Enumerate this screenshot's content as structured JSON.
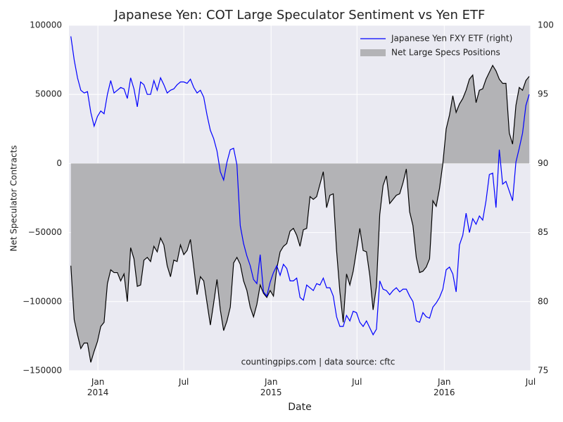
{
  "chart_data": {
    "type": "line",
    "title": "Japanese Yen: COT Large Speculator Sentiment vs Yen ETF",
    "xlabel": "Date",
    "ylabel": "Net Speculator Contracts",
    "annotation": "countingpips.com | data source: cftc",
    "grid": true,
    "legend": "upper right",
    "xlim": [
      "2013-11-01",
      "2016-07-01"
    ],
    "xticks": [
      {
        "value": "2014-01-01",
        "label": "Jan 2014"
      },
      {
        "value": "2014-07-01",
        "label": "Jul"
      },
      {
        "value": "2015-01-01",
        "label": "Jan 2015"
      },
      {
        "value": "2015-07-01",
        "label": "Jul"
      },
      {
        "value": "2016-01-01",
        "label": "Jan 2016"
      },
      {
        "value": "2016-07-01",
        "label": "Jul"
      }
    ],
    "ylim": [
      -150000,
      100000
    ],
    "yticks": [
      {
        "value": -150000,
        "label": "−150000"
      },
      {
        "value": -100000,
        "label": "−100000"
      },
      {
        "value": -50000,
        "label": "−50000"
      },
      0,
      50000,
      100000
    ],
    "y2lim": [
      75,
      100
    ],
    "y2ticks": [
      75,
      80,
      85,
      90,
      95,
      100
    ],
    "x": [
      "2013-11-05",
      "2013-11-12",
      "2013-11-19",
      "2013-11-26",
      "2013-12-03",
      "2013-12-10",
      "2013-12-17",
      "2013-12-24",
      "2013-12-31",
      "2014-01-07",
      "2014-01-14",
      "2014-01-21",
      "2014-01-28",
      "2014-02-04",
      "2014-02-11",
      "2014-02-18",
      "2014-02-25",
      "2014-03-04",
      "2014-03-11",
      "2014-03-18",
      "2014-03-25",
      "2014-04-01",
      "2014-04-08",
      "2014-04-15",
      "2014-04-22",
      "2014-04-29",
      "2014-05-06",
      "2014-05-13",
      "2014-05-20",
      "2014-05-27",
      "2014-06-03",
      "2014-06-10",
      "2014-06-17",
      "2014-06-24",
      "2014-07-01",
      "2014-07-08",
      "2014-07-15",
      "2014-07-22",
      "2014-07-29",
      "2014-08-05",
      "2014-08-12",
      "2014-08-19",
      "2014-08-26",
      "2014-09-02",
      "2014-09-09",
      "2014-09-16",
      "2014-09-23",
      "2014-09-30",
      "2014-10-07",
      "2014-10-14",
      "2014-10-21",
      "2014-10-28",
      "2014-11-04",
      "2014-11-11",
      "2014-11-18",
      "2014-11-25",
      "2014-12-02",
      "2014-12-09",
      "2014-12-16",
      "2014-12-23",
      "2014-12-30",
      "2015-01-06",
      "2015-01-13",
      "2015-01-20",
      "2015-01-27",
      "2015-02-03",
      "2015-02-10",
      "2015-02-17",
      "2015-02-24",
      "2015-03-03",
      "2015-03-10",
      "2015-03-17",
      "2015-03-24",
      "2015-03-31",
      "2015-04-07",
      "2015-04-14",
      "2015-04-21",
      "2015-04-28",
      "2015-05-05",
      "2015-05-12",
      "2015-05-19",
      "2015-05-26",
      "2015-06-02",
      "2015-06-09",
      "2015-06-16",
      "2015-06-23",
      "2015-06-30",
      "2015-07-07",
      "2015-07-14",
      "2015-07-21",
      "2015-07-28",
      "2015-08-04",
      "2015-08-11",
      "2015-08-18",
      "2015-08-25",
      "2015-09-01",
      "2015-09-08",
      "2015-09-15",
      "2015-09-22",
      "2015-09-29",
      "2015-10-06",
      "2015-10-13",
      "2015-10-20",
      "2015-10-27",
      "2015-11-03",
      "2015-11-10",
      "2015-11-17",
      "2015-11-24",
      "2015-12-01",
      "2015-12-08",
      "2015-12-15",
      "2015-12-22",
      "2015-12-29",
      "2016-01-05",
      "2016-01-12",
      "2016-01-19",
      "2016-01-26",
      "2016-02-02",
      "2016-02-09",
      "2016-02-16",
      "2016-02-23",
      "2016-03-01",
      "2016-03-08",
      "2016-03-15",
      "2016-03-22",
      "2016-03-29",
      "2016-04-05",
      "2016-04-12",
      "2016-04-19",
      "2016-04-26",
      "2016-05-03",
      "2016-05-10",
      "2016-05-17",
      "2016-05-24",
      "2016-05-31",
      "2016-06-07",
      "2016-06-14",
      "2016-06-21",
      "2016-06-28"
    ],
    "series": [
      {
        "name": "Japanese Yen FXY ETF (right)",
        "type": "line",
        "axis": "y2",
        "color": "#0000ff",
        "values": [
          99.2,
          97.5,
          96.2,
          95.3,
          95.1,
          95.2,
          93.7,
          92.7,
          93.4,
          93.8,
          93.6,
          95.0,
          96.0,
          95.1,
          95.3,
          95.5,
          95.4,
          94.7,
          96.2,
          95.4,
          94.1,
          95.9,
          95.7,
          95.0,
          95.0,
          96.0,
          95.3,
          96.2,
          95.7,
          95.1,
          95.3,
          95.4,
          95.7,
          95.9,
          95.9,
          95.8,
          96.1,
          95.5,
          95.1,
          95.3,
          94.8,
          93.5,
          92.4,
          91.8,
          90.9,
          89.4,
          88.8,
          90.1,
          91.0,
          91.1,
          89.9,
          85.5,
          84.2,
          83.3,
          82.6,
          81.6,
          81.3,
          83.4,
          80.7,
          80.4,
          81.4,
          82.1,
          82.6,
          81.9,
          82.7,
          82.4,
          81.5,
          81.5,
          81.7,
          80.3,
          80.1,
          81.2,
          81.0,
          80.8,
          81.3,
          81.2,
          81.7,
          81.0,
          81.0,
          80.4,
          78.9,
          78.2,
          78.2,
          79.0,
          78.6,
          79.3,
          79.2,
          78.5,
          78.2,
          78.6,
          78.1,
          77.6,
          78.0,
          81.5,
          80.9,
          80.8,
          80.5,
          80.8,
          81.0,
          80.7,
          80.9,
          80.9,
          80.4,
          80.0,
          78.6,
          78.5,
          79.2,
          78.9,
          78.8,
          79.6,
          79.9,
          80.3,
          80.9,
          82.3,
          82.5,
          82.0,
          80.7,
          84.1,
          84.8,
          86.4,
          85.0,
          86.0,
          85.6,
          86.2,
          85.9,
          87.3,
          89.2,
          89.3,
          86.8,
          91.0,
          88.5,
          88.7,
          88.0,
          87.3,
          90.1,
          91.1,
          92.2,
          94.2,
          95.0
        ]
      },
      {
        "name": "Net Large Specs Positions",
        "type": "area",
        "axis": "y",
        "color": "#b3b3b6",
        "line_color": "#000000",
        "values": [
          -74000,
          -113000,
          -124000,
          -134000,
          -130000,
          -130000,
          -144000,
          -136000,
          -129000,
          -118000,
          -115000,
          -87000,
          -77000,
          -79000,
          -79000,
          -85000,
          -80000,
          -100000,
          -61000,
          -69000,
          -89000,
          -88000,
          -70000,
          -68000,
          -71000,
          -60000,
          -64000,
          -54000,
          -59000,
          -74000,
          -82000,
          -70000,
          -71000,
          -59000,
          -66000,
          -63000,
          -55000,
          -75000,
          -95000,
          -82000,
          -85000,
          -101000,
          -117000,
          -101000,
          -84000,
          -106000,
          -121000,
          -114000,
          -104000,
          -72000,
          -68000,
          -73000,
          -85000,
          -92000,
          -104000,
          -111000,
          -102000,
          -88000,
          -94000,
          -97000,
          -92000,
          -96000,
          -76000,
          -64000,
          -60000,
          -58000,
          -49000,
          -47000,
          -52000,
          -60000,
          -48000,
          -47000,
          -24000,
          -26000,
          -24000,
          -15000,
          -6000,
          -32000,
          -23000,
          -22000,
          -63000,
          -93000,
          -115000,
          -80000,
          -88000,
          -78000,
          -63000,
          -47000,
          -63000,
          -64000,
          -81000,
          -106000,
          -89000,
          -37000,
          -16000,
          -9000,
          -29000,
          -26000,
          -23000,
          -22000,
          -14000,
          -4000,
          -35000,
          -45000,
          -68000,
          -79000,
          -78000,
          -75000,
          -69000,
          -27000,
          -31000,
          -18000,
          0,
          25000,
          35000,
          49000,
          37000,
          43000,
          47000,
          53000,
          61000,
          64000,
          44000,
          53000,
          54000,
          61000,
          66000,
          71000,
          67000,
          61000,
          58000,
          58000,
          22000,
          14000,
          42000,
          55000,
          53000,
          60000,
          63000
        ]
      }
    ]
  }
}
